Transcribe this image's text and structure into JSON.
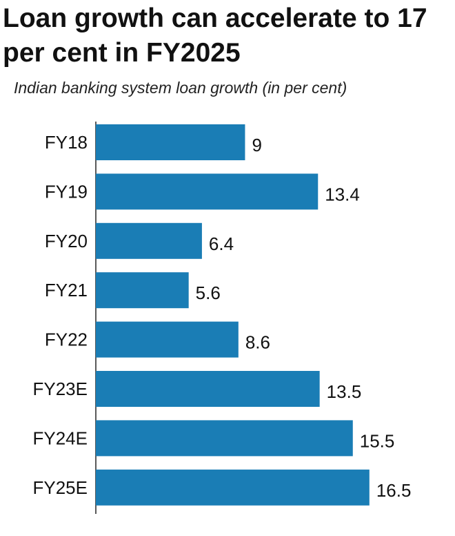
{
  "chart_data": {
    "type": "bar",
    "orientation": "horizontal",
    "title": "Loan growth can accelerate to 17 per cent in FY2025",
    "subtitle": "Indian banking system loan growth (in per cent)",
    "categories": [
      "FY18",
      "FY19",
      "FY20",
      "FY21",
      "FY22",
      "FY23E",
      "FY24E",
      "FY25E"
    ],
    "values": [
      9,
      13.4,
      6.4,
      5.6,
      8.6,
      13.5,
      15.5,
      16.5
    ],
    "value_labels": [
      "9",
      "13.4",
      "6.4",
      "5.6",
      "8.6",
      "13.5",
      "15.5",
      "16.5"
    ],
    "bar_color": "#1a7db5",
    "xlim": [
      0,
      17
    ],
    "grid": false,
    "legend": "none"
  }
}
